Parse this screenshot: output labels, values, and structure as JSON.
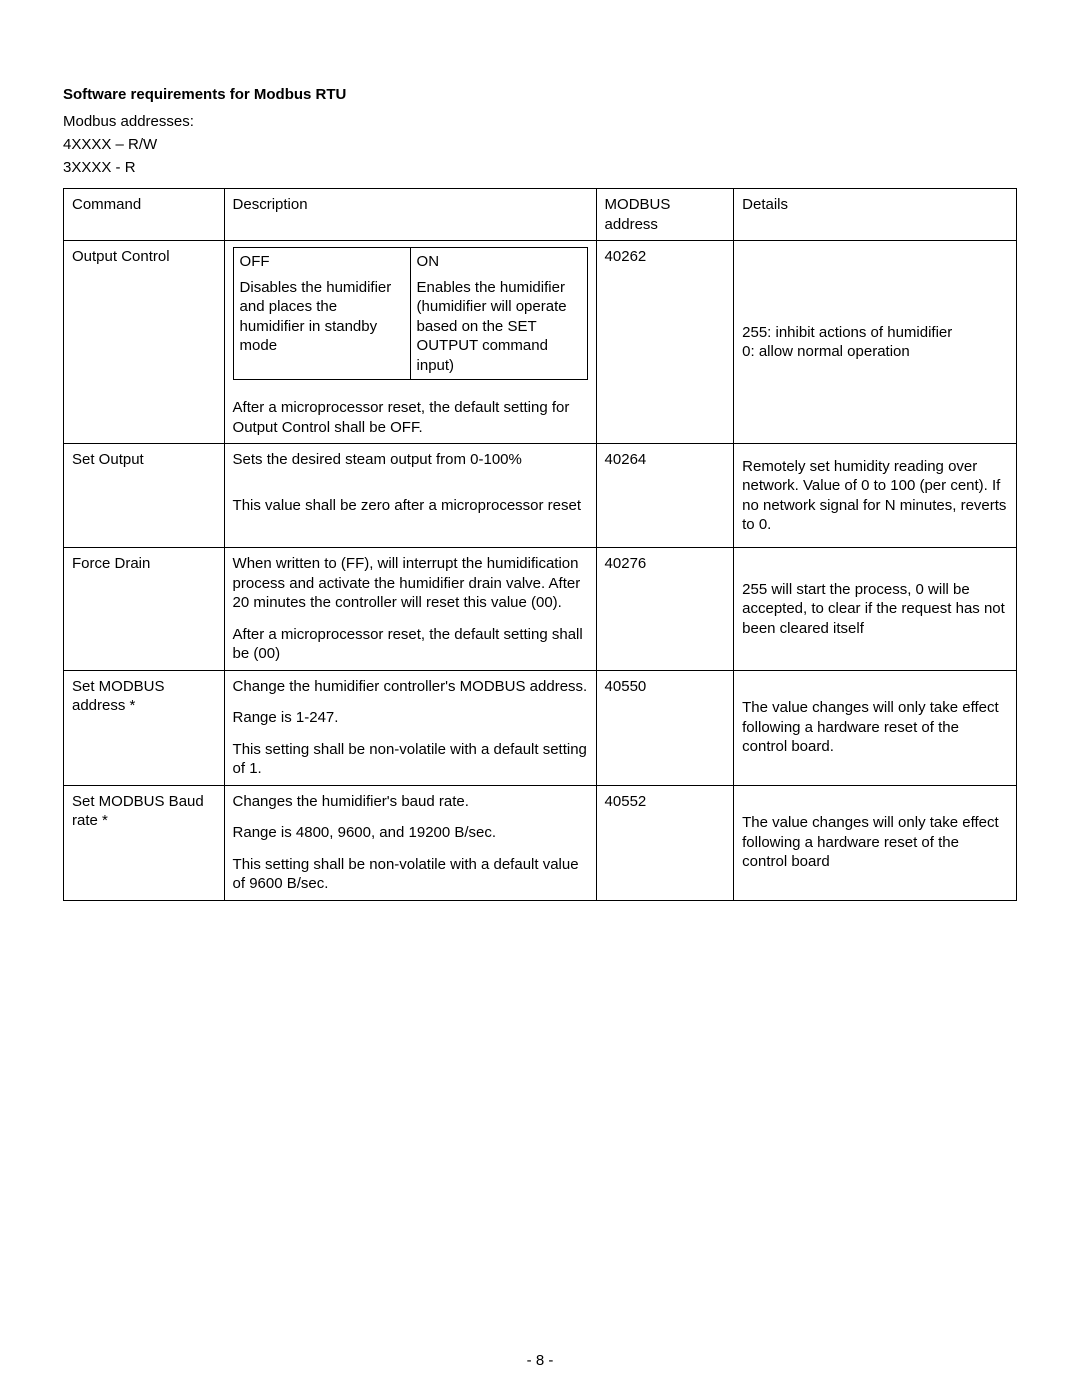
{
  "heading": "Software requirements for Modbus RTU",
  "intro": {
    "line1": "Modbus addresses:",
    "line2": "4XXXX – R/W",
    "line3": "3XXXX - R"
  },
  "table": {
    "headers": {
      "command": "Command",
      "description": "Description",
      "address": "MODBUS address",
      "details": "Details"
    },
    "rows": {
      "output_control": {
        "command": "Output Control",
        "off_head": "OFF",
        "off_body": "Disables the humidifier and places the humidifier in standby mode",
        "on_head": "ON",
        "on_body": "Enables the humidifier (humidifier will operate based on the SET OUTPUT command input)",
        "after": "After a microprocessor reset, the default setting for Output Control shall be OFF.",
        "address": "40262",
        "details": "255: inhibit actions of humidifier\n0: allow normal operation"
      },
      "set_output": {
        "command": "Set Output",
        "desc1": "Sets the desired steam output from 0-100%",
        "desc2": "This value shall be zero after a microprocessor reset",
        "address": "40264",
        "details": "Remotely set humidity reading over network. Value of 0 to 100 (per cent). If no network signal for N minutes, reverts to 0."
      },
      "force_drain": {
        "command": "Force Drain",
        "desc1": "When written to (FF), will interrupt the humidification process and activate the humidifier drain valve. After 20 minutes the controller will reset this value (00).",
        "desc2": "After a microprocessor reset, the default setting shall be (00)",
        "address": "40276",
        "details": "255 will start the process, 0 will be accepted, to clear if the request has not been cleared itself"
      },
      "set_address": {
        "command": "Set MODBUS address *",
        "desc1": "Change the humidifier controller's MODBUS address.",
        "desc2": "Range is 1-247.",
        "desc3": "This setting shall be non-volatile with a default setting of 1.",
        "address": "40550",
        "details": "The value changes will only take effect following a hardware reset of the control board."
      },
      "set_baud": {
        "command": "Set MODBUS Baud rate *",
        "desc1": "Changes the humidifier's baud rate.",
        "desc2": "Range is 4800, 9600, and 19200 B/sec.",
        "desc3": "This setting shall be non-volatile with a default value of 9600 B/sec.",
        "address": "40552",
        "details": "The value changes will only take effect following a hardware reset of the control board"
      }
    }
  },
  "page_number": "- 8 -"
}
